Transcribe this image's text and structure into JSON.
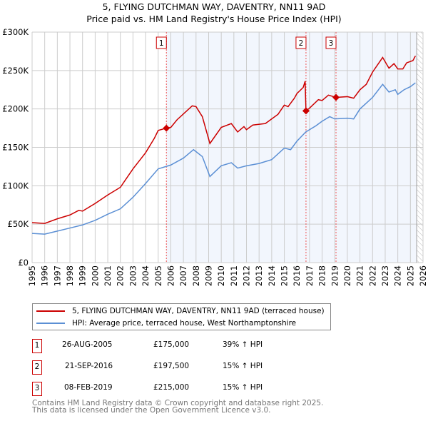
{
  "chart_data": {
    "type": "line",
    "title": "5, FLYING DUTCHMAN WAY, DAVENTRY, NN11 9AD",
    "subtitle": "Price paid vs. HM Land Registry's House Price Index (HPI)",
    "xlim": [
      1995,
      2026
    ],
    "ylim": [
      0,
      300000
    ],
    "x_ticks": [
      "1995",
      "1996",
      "1997",
      "1998",
      "1999",
      "2000",
      "2001",
      "2002",
      "2003",
      "2004",
      "2005",
      "2006",
      "2007",
      "2008",
      "2009",
      "2010",
      "2011",
      "2012",
      "2013",
      "2014",
      "2015",
      "2016",
      "2017",
      "2018",
      "2019",
      "2020",
      "2021",
      "2022",
      "2023",
      "2024",
      "2025",
      "2026"
    ],
    "y_ticks": [
      {
        "v": 0,
        "l": "£0"
      },
      {
        "v": 50000,
        "l": "£50K"
      },
      {
        "v": 100000,
        "l": "£100K"
      },
      {
        "v": 150000,
        "l": "£150K"
      },
      {
        "v": 200000,
        "l": "£200K"
      },
      {
        "v": 250000,
        "l": "£250K"
      },
      {
        "v": 300000,
        "l": "£300K"
      }
    ],
    "grid": true,
    "series": [
      {
        "name": "5, FLYING DUTCHMAN WAY, DAVENTRY, NN11 9AD (terraced house)",
        "color": "#cc0000",
        "points": [
          [
            1995,
            52
          ],
          [
            1996,
            51
          ],
          [
            1997,
            57
          ],
          [
            1998,
            62
          ],
          [
            1998.7,
            68
          ],
          [
            1999,
            67
          ],
          [
            2000,
            77
          ],
          [
            2001,
            88
          ],
          [
            2002,
            98
          ],
          [
            2003,
            122
          ],
          [
            2004,
            143
          ],
          [
            2004.7,
            162
          ],
          [
            2005,
            172
          ],
          [
            2005.65,
            175
          ],
          [
            2006,
            176
          ],
          [
            2006.5,
            186
          ],
          [
            2007.7,
            204
          ],
          [
            2008,
            203
          ],
          [
            2008.5,
            190
          ],
          [
            2009.1,
            155
          ],
          [
            2010,
            176
          ],
          [
            2010.8,
            181
          ],
          [
            2011.3,
            170
          ],
          [
            2011.8,
            177
          ],
          [
            2012,
            173
          ],
          [
            2012.5,
            179
          ],
          [
            2013.5,
            181
          ],
          [
            2014.5,
            193
          ],
          [
            2015,
            205
          ],
          [
            2015.3,
            203
          ],
          [
            2015.8,
            214
          ],
          [
            2016,
            220
          ],
          [
            2016.5,
            228
          ],
          [
            2016.65,
            236
          ],
          [
            2016.72,
            197.5
          ],
          [
            2017,
            201
          ],
          [
            2017.7,
            212
          ],
          [
            2018,
            211
          ],
          [
            2018.5,
            218
          ],
          [
            2019.1,
            215
          ],
          [
            2020,
            216
          ],
          [
            2020.5,
            214
          ],
          [
            2021,
            225
          ],
          [
            2021.5,
            232
          ],
          [
            2022,
            248
          ],
          [
            2022.8,
            267
          ],
          [
            2023.3,
            253
          ],
          [
            2023.7,
            259
          ],
          [
            2024,
            252
          ],
          [
            2024.4,
            252
          ],
          [
            2024.7,
            260
          ],
          [
            2025.2,
            263
          ],
          [
            2025.4,
            269
          ]
        ]
      },
      {
        "name": "HPI: Average price, terraced house, West Northamptonshire",
        "color": "#5b8fd4",
        "points": [
          [
            1995,
            38
          ],
          [
            1996,
            37
          ],
          [
            1997,
            41
          ],
          [
            1998,
            45
          ],
          [
            1999,
            49
          ],
          [
            2000,
            55
          ],
          [
            2001,
            63
          ],
          [
            2002,
            70
          ],
          [
            2003,
            85
          ],
          [
            2004,
            103
          ],
          [
            2005,
            122
          ],
          [
            2006,
            127
          ],
          [
            2007,
            136
          ],
          [
            2007.8,
            147
          ],
          [
            2008.5,
            138
          ],
          [
            2009.1,
            112
          ],
          [
            2010,
            126
          ],
          [
            2010.8,
            130
          ],
          [
            2011.3,
            123
          ],
          [
            2012,
            126
          ],
          [
            2013,
            129
          ],
          [
            2014,
            134
          ],
          [
            2015,
            149
          ],
          [
            2015.5,
            147
          ],
          [
            2016,
            158
          ],
          [
            2016.7,
            170
          ],
          [
            2017.5,
            178
          ],
          [
            2018,
            184
          ],
          [
            2018.6,
            190
          ],
          [
            2019,
            187
          ],
          [
            2020,
            188
          ],
          [
            2020.5,
            187
          ],
          [
            2021,
            200
          ],
          [
            2022,
            215
          ],
          [
            2022.8,
            232
          ],
          [
            2023.3,
            222
          ],
          [
            2023.8,
            225
          ],
          [
            2024,
            219
          ],
          [
            2024.5,
            225
          ],
          [
            2025,
            229
          ],
          [
            2025.4,
            234
          ]
        ]
      }
    ],
    "sales": [
      {
        "label": "1",
        "x": 2005.65,
        "price": 175,
        "date": "26-AUG-2005",
        "price_text": "£175,000",
        "hpi": "39% ↑ HPI"
      },
      {
        "label": "2",
        "x": 2016.72,
        "price": 197.5,
        "date": "21-SEP-2016",
        "price_text": "£197,500",
        "hpi": "15% ↑ HPI"
      },
      {
        "label": "3",
        "x": 2019.1,
        "price": 215,
        "date": "08-FEB-2019",
        "price_text": "£215,000",
        "hpi": "15% ↑ HPI"
      }
    ],
    "shaded_range": [
      2005.65,
      2025.5
    ],
    "hatch_from": 2025.5,
    "legend_position": "below"
  },
  "footer": {
    "line1": "Contains HM Land Registry data © Crown copyright and database right 2025.",
    "line2": "This data is licensed under the Open Government Licence v3.0."
  }
}
